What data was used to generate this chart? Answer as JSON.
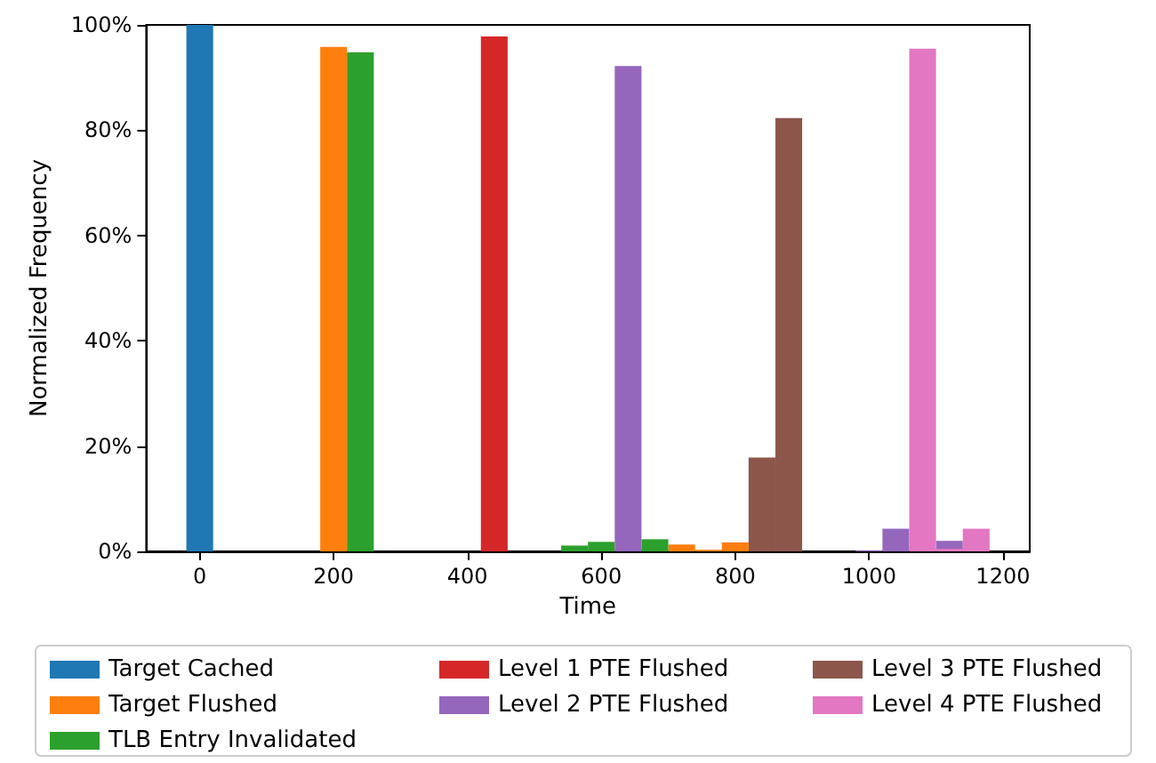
{
  "chart_data": {
    "type": "histogram",
    "xlabel": "Time",
    "ylabel": "Normalized Frequency",
    "bins": [
      -20,
      20,
      60,
      100,
      140,
      180,
      220,
      260,
      300,
      340,
      380,
      420,
      460,
      500,
      540,
      580,
      620,
      660,
      700,
      740,
      780,
      820,
      860,
      900,
      940,
      980,
      1020,
      1060,
      1100,
      1140,
      1180
    ],
    "series": [
      {
        "name": "Target Cached",
        "color": "#1f77b4",
        "values": [
          100,
          0,
          0,
          0,
          0,
          0,
          0,
          0,
          0,
          0,
          0,
          0,
          0,
          0,
          0,
          0,
          0,
          0,
          0,
          0,
          0,
          0,
          0,
          0,
          0,
          0,
          0,
          0,
          0,
          0
        ]
      },
      {
        "name": "Target Flushed",
        "color": "#ff7f0e",
        "values": [
          0,
          0,
          0,
          0,
          0,
          95.8,
          0,
          0,
          0,
          0,
          0,
          0,
          0,
          0,
          0,
          0,
          0,
          0,
          1.3,
          0.3,
          1.7,
          0,
          0,
          0,
          0,
          0,
          0,
          0,
          0,
          0
        ]
      },
      {
        "name": "TLB Entry Invalidated",
        "color": "#2ca02c",
        "values": [
          0,
          0,
          0,
          0,
          0,
          0,
          94.8,
          0,
          0,
          0,
          0,
          0,
          0,
          0,
          1.1,
          1.8,
          0,
          2.3,
          0,
          0,
          0,
          0,
          0,
          0,
          0,
          0,
          0,
          0,
          0,
          0
        ]
      },
      {
        "name": "Level 1 PTE Flushed",
        "color": "#d62728",
        "values": [
          0,
          0,
          0,
          0,
          0,
          0,
          0,
          0,
          0,
          0,
          0,
          97.8,
          0,
          0,
          0,
          0,
          0,
          0,
          0,
          0,
          0,
          0,
          0,
          0,
          0,
          0,
          0,
          0,
          0,
          0
        ]
      },
      {
        "name": "Level 2 PTE Flushed",
        "color": "#9467bd",
        "values": [
          0,
          0,
          0,
          0,
          0,
          0,
          0,
          0,
          0,
          0,
          0,
          0,
          0,
          0,
          0,
          0,
          92.2,
          0,
          0,
          0,
          0,
          0,
          0,
          0,
          0,
          0.2,
          4.3,
          0,
          2.0,
          0
        ]
      },
      {
        "name": "Level 3 PTE Flushed",
        "color": "#8c564b",
        "values": [
          0,
          0,
          0,
          0,
          0,
          0,
          0,
          0,
          0,
          0,
          0,
          0,
          0,
          0,
          0,
          0,
          0,
          0,
          0,
          0,
          0,
          17.8,
          82.3,
          0,
          0,
          0,
          0,
          0,
          0,
          0
        ]
      },
      {
        "name": "Level 4 PTE Flushed",
        "color": "#e377c2",
        "values": [
          0,
          0,
          0,
          0,
          0,
          0,
          0,
          0,
          0,
          0,
          0,
          0,
          0,
          0,
          0,
          0,
          0,
          0,
          0,
          0,
          0,
          0,
          0,
          0,
          0,
          0,
          0,
          95.5,
          0.5,
          4.3
        ]
      }
    ],
    "xlim": [
      -80,
      1240
    ],
    "xticks": [
      0,
      200,
      400,
      600,
      800,
      1000,
      1200
    ],
    "ylim": [
      0,
      100
    ],
    "yticks": [
      {
        "value": 0,
        "label": "0%"
      },
      {
        "value": 20,
        "label": "20%"
      },
      {
        "value": 40,
        "label": "40%"
      },
      {
        "value": 60,
        "label": "60%"
      },
      {
        "value": 80,
        "label": "80%"
      },
      {
        "value": 100,
        "label": "100%"
      }
    ],
    "grid": false,
    "legend": "bottom"
  }
}
